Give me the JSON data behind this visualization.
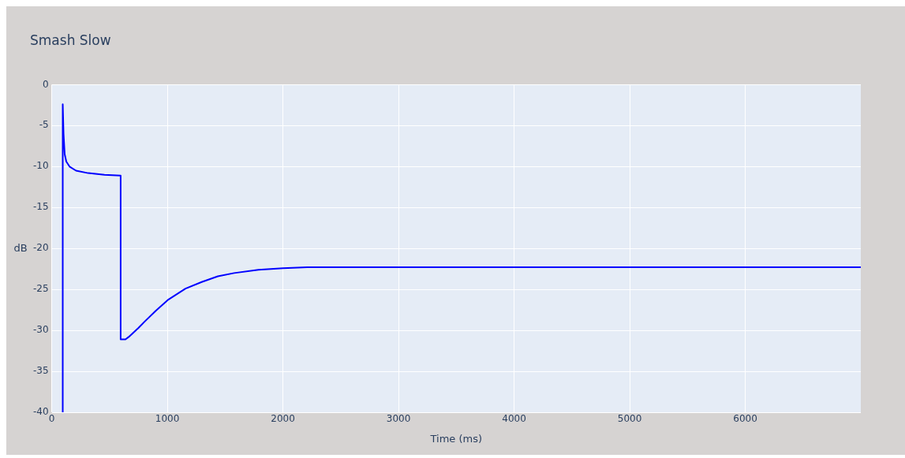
{
  "chart_data": {
    "type": "line",
    "title": "Smash Slow",
    "xlabel": "Time (ms)",
    "ylabel": "dB",
    "x": [
      95,
      95,
      102,
      112,
      126,
      154,
      210,
      315,
      456,
      596,
      596,
      638,
      666,
      750,
      806,
      900,
      1003,
      1080,
      1157,
      1297,
      1437,
      1578,
      1788,
      2000,
      2209,
      3000,
      4000,
      5000,
      6000,
      7000
    ],
    "series": [
      {
        "color": "#0000ff",
        "values": [
          -40,
          -2.4,
          -6,
          -8.5,
          -9.4,
          -10,
          -10.5,
          -10.8,
          -11,
          -11.1,
          -31.1,
          -31.1,
          -30.8,
          -29.7,
          -28.9,
          -27.6,
          -26.3,
          -25.6,
          -24.9,
          -24.1,
          -23.4,
          -23,
          -22.6,
          -22.4,
          -22.3,
          -22.3,
          -22.3,
          -22.3,
          -22.3,
          -22.3
        ]
      }
    ],
    "xlim": [
      0,
      7000
    ],
    "xticks": [
      0,
      1000,
      2000,
      3000,
      4000,
      5000,
      6000
    ],
    "ylim": [
      -40,
      0
    ],
    "yticks": [
      -40,
      -35,
      -30,
      -25,
      -20,
      -15,
      -10,
      -5,
      0
    ],
    "grid": true,
    "legend": false,
    "marker": "none",
    "line_style": "solid"
  }
}
